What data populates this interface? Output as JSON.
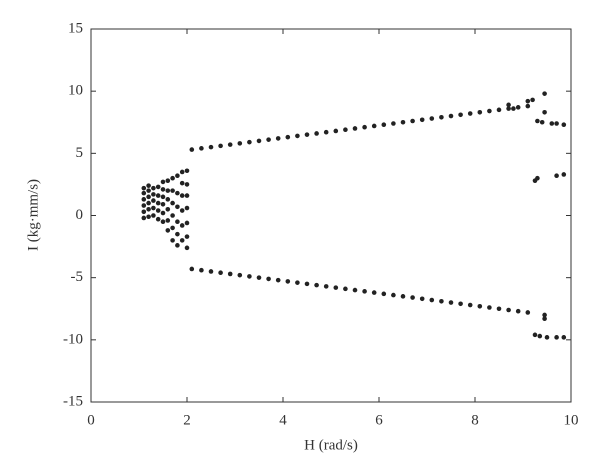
{
  "chart_data": {
    "type": "scatter",
    "x_label": "H (rad/s)",
    "y_label": "I (kg·mm/s)",
    "xlim": [
      0,
      10
    ],
    "ylim": [
      -15,
      15
    ],
    "xticks": [
      0,
      2,
      4,
      6,
      8,
      10
    ],
    "yticks": [
      -15,
      -10,
      -5,
      0,
      5,
      10,
      15
    ],
    "color": "#222222",
    "x": [
      1.1,
      1.1,
      1.1,
      1.1,
      1.1,
      1.1,
      1.2,
      1.2,
      1.2,
      1.2,
      1.2,
      1.2,
      1.3,
      1.3,
      1.3,
      1.3,
      1.3,
      1.4,
      1.4,
      1.4,
      1.4,
      1.4,
      1.5,
      1.5,
      1.5,
      1.5,
      1.5,
      1.5,
      1.6,
      1.6,
      1.6,
      1.6,
      1.6,
      1.6,
      1.7,
      1.7,
      1.7,
      1.7,
      1.7,
      1.7,
      1.8,
      1.8,
      1.8,
      1.8,
      1.8,
      1.8,
      1.9,
      1.9,
      1.9,
      1.9,
      1.9,
      1.9,
      2.0,
      2.0,
      2.0,
      2.0,
      2.0,
      2.0,
      2.0,
      2.1,
      2.3,
      2.5,
      2.7,
      2.9,
      3.1,
      3.3,
      3.5,
      3.7,
      3.9,
      4.1,
      4.3,
      4.5,
      4.7,
      4.9,
      5.1,
      5.3,
      5.5,
      5.7,
      5.9,
      6.1,
      6.3,
      6.5,
      6.7,
      6.9,
      7.1,
      7.3,
      7.5,
      7.7,
      7.9,
      8.1,
      8.3,
      8.5,
      8.7,
      8.9,
      9.1,
      2.1,
      2.3,
      2.5,
      2.7,
      2.9,
      3.1,
      3.3,
      3.5,
      3.7,
      3.9,
      4.1,
      4.3,
      4.5,
      4.7,
      4.9,
      5.1,
      5.3,
      5.5,
      5.7,
      5.9,
      6.1,
      6.3,
      6.5,
      6.7,
      6.9,
      7.1,
      7.3,
      7.5,
      7.7,
      7.9,
      8.1,
      8.3,
      8.5,
      8.7,
      8.9,
      9.1,
      9.45,
      9.3,
      9.4,
      9.6,
      9.7,
      9.85,
      9.25,
      9.3,
      9.7,
      9.85,
      9.25,
      9.35,
      9.5,
      9.7,
      9.85,
      9.45,
      9.45,
      9.45,
      8.7,
      8.8,
      9.1,
      9.2
    ],
    "y": [
      -0.2,
      0.3,
      0.8,
      1.3,
      1.8,
      2.2,
      -0.1,
      0.5,
      1.0,
      1.5,
      2.0,
      2.4,
      0.0,
      0.6,
      1.2,
      1.7,
      2.2,
      -0.3,
      0.4,
      1.0,
      1.6,
      2.3,
      -0.5,
      0.2,
      0.9,
      1.5,
      2.1,
      2.7,
      -1.2,
      -0.4,
      0.5,
      1.3,
      2.0,
      2.8,
      -2.0,
      -1.0,
      0.0,
      1.0,
      2.0,
      3.0,
      -2.4,
      -1.5,
      -0.5,
      0.7,
      1.8,
      3.2,
      -2.0,
      -0.8,
      0.4,
      1.6,
      2.6,
      3.5,
      -2.6,
      -1.7,
      -0.6,
      0.6,
      1.6,
      2.5,
      3.6,
      5.3,
      5.4,
      5.5,
      5.6,
      5.7,
      5.8,
      5.9,
      6.0,
      6.1,
      6.2,
      6.3,
      6.4,
      6.5,
      6.6,
      6.7,
      6.8,
      6.9,
      7.0,
      7.1,
      7.2,
      7.3,
      7.4,
      7.5,
      7.6,
      7.7,
      7.8,
      7.9,
      8.0,
      8.1,
      8.2,
      8.3,
      8.4,
      8.5,
      8.6,
      8.7,
      8.8,
      -4.3,
      -4.4,
      -4.5,
      -4.6,
      -4.7,
      -4.8,
      -4.9,
      -5.0,
      -5.1,
      -5.2,
      -5.3,
      -5.4,
      -5.5,
      -5.6,
      -5.7,
      -5.8,
      -5.9,
      -6.0,
      -6.1,
      -6.2,
      -6.3,
      -6.4,
      -6.5,
      -6.6,
      -6.7,
      -6.8,
      -6.9,
      -7.0,
      -7.1,
      -7.2,
      -7.3,
      -7.4,
      -7.5,
      -7.6,
      -7.7,
      -7.8,
      9.8,
      7.6,
      7.5,
      7.4,
      7.4,
      7.3,
      2.8,
      3.0,
      3.2,
      3.3,
      -9.6,
      -9.7,
      -9.8,
      -9.8,
      -9.8,
      -8.0,
      -8.3,
      8.3,
      8.9,
      8.6,
      9.2,
      9.3
    ]
  }
}
